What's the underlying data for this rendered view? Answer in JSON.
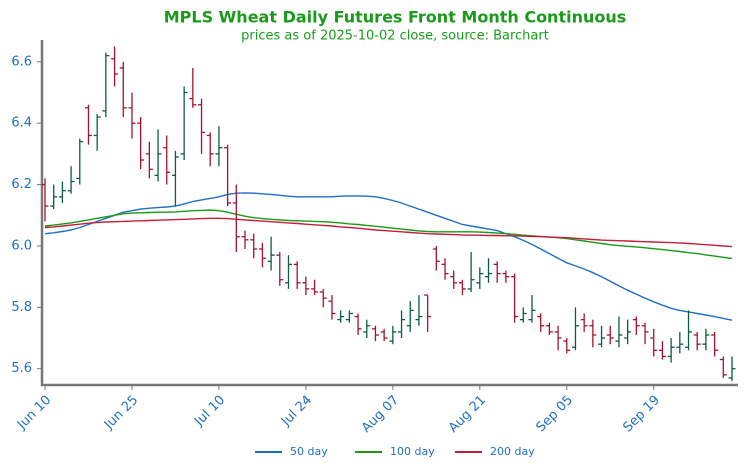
{
  "chart_data": {
    "type": "ohlc",
    "title": "MPLS Wheat Daily Futures Front Month Continuous",
    "subtitle": "prices as of 2025-10-02 close, source: Barchart",
    "categories": [
      "Jun 10",
      null,
      null,
      null,
      null,
      null,
      null,
      null,
      null,
      null,
      "Jun 25",
      null,
      null,
      null,
      null,
      null,
      null,
      null,
      null,
      null,
      "Jul 10",
      null,
      null,
      null,
      null,
      null,
      null,
      null,
      null,
      null,
      "Jul 24",
      null,
      null,
      null,
      null,
      null,
      null,
      null,
      null,
      null,
      "Aug 07",
      null,
      null,
      null,
      null,
      null,
      null,
      null,
      null,
      null,
      "Aug 21",
      null,
      null,
      null,
      null,
      null,
      null,
      null,
      null,
      null,
      "Sep 05",
      null,
      null,
      null,
      null,
      null,
      null,
      null,
      null,
      null,
      "Sep 19",
      null,
      null,
      null,
      null,
      null,
      null,
      null,
      null,
      null
    ],
    "open": [
      6.2,
      6.13,
      6.16,
      6.18,
      6.22,
      6.45,
      6.36,
      6.44,
      6.61,
      6.58,
      6.45,
      6.4,
      6.3,
      6.23,
      6.32,
      6.23,
      6.3,
      6.48,
      6.46,
      6.36,
      6.3,
      6.32,
      6.14,
      6.03,
      6.02,
      5.99,
      5.95,
      5.97,
      5.88,
      5.94,
      5.88,
      5.86,
      5.85,
      5.82,
      5.76,
      5.76,
      5.77,
      5.72,
      5.73,
      5.72,
      5.69,
      5.72,
      5.74,
      5.76,
      5.84,
      5.99,
      5.94,
      5.9,
      5.88,
      5.86,
      5.88,
      5.9,
      5.94,
      5.91,
      5.9,
      5.76,
      5.76,
      5.77,
      5.74,
      5.72,
      5.69,
      5.67,
      5.76,
      5.74,
      5.68,
      5.71,
      5.69,
      5.7,
      5.76,
      5.74,
      5.7,
      5.66,
      5.64,
      5.67,
      5.67,
      5.71,
      5.68,
      5.71,
      5.63,
      5.57
    ],
    "high": [
      6.22,
      6.2,
      6.21,
      6.26,
      6.35,
      6.46,
      6.43,
      6.63,
      6.65,
      6.6,
      6.5,
      6.42,
      6.34,
      6.38,
      6.36,
      6.31,
      6.52,
      6.58,
      6.48,
      6.37,
      6.39,
      6.33,
      6.2,
      6.05,
      6.04,
      6.01,
      6.03,
      5.98,
      5.97,
      5.95,
      5.9,
      5.89,
      5.86,
      5.84,
      5.79,
      5.79,
      5.78,
      5.76,
      5.74,
      5.73,
      5.74,
      5.79,
      5.82,
      5.84,
      5.84,
      6.0,
      5.96,
      5.92,
      5.89,
      5.98,
      5.93,
      5.96,
      5.95,
      5.92,
      5.91,
      5.8,
      5.84,
      5.78,
      5.75,
      5.74,
      5.7,
      5.8,
      5.78,
      5.76,
      5.74,
      5.74,
      5.77,
      5.76,
      5.77,
      5.75,
      5.73,
      5.69,
      5.7,
      5.72,
      5.79,
      5.72,
      5.73,
      5.72,
      5.64,
      5.64
    ],
    "low": [
      6.08,
      6.12,
      6.14,
      6.17,
      6.2,
      6.33,
      6.31,
      6.42,
      6.52,
      6.42,
      6.35,
      6.25,
      6.22,
      6.21,
      6.2,
      6.13,
      6.28,
      6.45,
      6.3,
      6.26,
      6.26,
      6.13,
      5.98,
      5.99,
      5.96,
      5.93,
      5.92,
      5.87,
      5.86,
      5.86,
      5.84,
      5.84,
      5.8,
      5.76,
      5.75,
      5.75,
      5.71,
      5.7,
      5.69,
      5.69,
      5.68,
      5.7,
      5.72,
      5.74,
      5.72,
      5.92,
      5.89,
      5.86,
      5.84,
      5.85,
      5.86,
      5.88,
      5.88,
      5.88,
      5.75,
      5.75,
      5.75,
      5.72,
      5.71,
      5.66,
      5.65,
      5.66,
      5.72,
      5.67,
      5.67,
      5.68,
      5.67,
      5.68,
      5.71,
      5.68,
      5.64,
      5.63,
      5.62,
      5.65,
      5.66,
      5.66,
      5.66,
      5.64,
      5.57,
      5.56
    ],
    "close": [
      6.13,
      6.16,
      6.18,
      6.21,
      6.34,
      6.36,
      6.42,
      6.62,
      6.56,
      6.45,
      6.4,
      6.28,
      6.25,
      6.3,
      6.24,
      6.29,
      6.5,
      6.46,
      6.37,
      6.3,
      6.32,
      6.14,
      6.03,
      6.02,
      5.99,
      5.96,
      5.97,
      5.89,
      5.94,
      5.88,
      5.86,
      5.85,
      5.83,
      5.78,
      5.77,
      5.78,
      5.73,
      5.74,
      5.71,
      5.7,
      5.72,
      5.76,
      5.79,
      5.77,
      5.77,
      5.95,
      5.91,
      5.88,
      5.86,
      5.89,
      5.91,
      5.91,
      5.91,
      5.9,
      5.77,
      5.78,
      5.79,
      5.74,
      5.72,
      5.7,
      5.66,
      5.74,
      5.74,
      5.71,
      5.7,
      5.7,
      5.71,
      5.72,
      5.74,
      5.72,
      5.66,
      5.64,
      5.67,
      5.68,
      5.72,
      5.68,
      5.71,
      5.66,
      5.58,
      5.6
    ],
    "up_color": "#0b5d3b",
    "down_color": "#a3132f",
    "series": [
      {
        "name": "50 day",
        "color": "#1f6fc5",
        "values": [
          6.04,
          6.043,
          6.047,
          6.052,
          6.06,
          6.07,
          6.08,
          6.09,
          6.1,
          6.11,
          6.115,
          6.12,
          6.123,
          6.125,
          6.127,
          6.13,
          6.137,
          6.145,
          6.15,
          6.155,
          6.16,
          6.168,
          6.172,
          6.173,
          6.172,
          6.17,
          6.168,
          6.165,
          6.162,
          6.16,
          6.16,
          6.16,
          6.16,
          6.16,
          6.162,
          6.163,
          6.163,
          6.162,
          6.16,
          6.155,
          6.148,
          6.14,
          6.13,
          6.12,
          6.11,
          6.1,
          6.09,
          6.08,
          6.07,
          6.065,
          6.06,
          6.055,
          6.05,
          6.04,
          6.03,
          6.018,
          6.005,
          5.99,
          5.975,
          5.96,
          5.945,
          5.935,
          5.925,
          5.913,
          5.9,
          5.885,
          5.87,
          5.856,
          5.843,
          5.83,
          5.818,
          5.807,
          5.797,
          5.79,
          5.785,
          5.78,
          5.775,
          5.77,
          5.764,
          5.758
        ]
      },
      {
        "name": "100 day",
        "color": "#1a9a1a",
        "values": [
          6.065,
          6.068,
          6.072,
          6.075,
          6.08,
          6.085,
          6.09,
          6.095,
          6.1,
          6.105,
          6.107,
          6.108,
          6.109,
          6.11,
          6.11,
          6.111,
          6.113,
          6.115,
          6.116,
          6.117,
          6.115,
          6.11,
          6.103,
          6.097,
          6.092,
          6.089,
          6.087,
          6.085,
          6.083,
          6.082,
          6.081,
          6.08,
          6.079,
          6.077,
          6.075,
          6.072,
          6.07,
          6.067,
          6.064,
          6.061,
          6.058,
          6.055,
          6.052,
          6.049,
          6.047,
          6.046,
          6.046,
          6.046,
          6.046,
          6.046,
          6.045,
          6.044,
          6.042,
          6.04,
          6.038,
          6.035,
          6.033,
          6.031,
          6.029,
          6.027,
          6.024,
          6.02,
          6.016,
          6.012,
          6.008,
          6.004,
          6.001,
          5.999,
          5.997,
          5.994,
          5.991,
          5.988,
          5.985,
          5.982,
          5.978,
          5.975,
          5.971,
          5.967,
          5.963,
          5.959
        ]
      },
      {
        "name": "200 day",
        "color": "#c41e3a",
        "values": [
          6.06,
          6.062,
          6.065,
          6.068,
          6.071,
          6.074,
          6.076,
          6.078,
          6.079,
          6.08,
          6.081,
          6.082,
          6.083,
          6.084,
          6.085,
          6.086,
          6.087,
          6.088,
          6.089,
          6.09,
          6.09,
          6.089,
          6.087,
          6.085,
          6.083,
          6.081,
          6.079,
          6.077,
          6.075,
          6.073,
          6.071,
          6.069,
          6.067,
          6.065,
          6.062,
          6.06,
          6.058,
          6.055,
          6.052,
          6.05,
          6.048,
          6.046,
          6.044,
          6.042,
          6.04,
          6.039,
          6.038,
          6.037,
          6.036,
          6.035,
          6.035,
          6.034,
          6.034,
          6.033,
          6.033,
          6.032,
          6.031,
          6.03,
          6.029,
          6.028,
          6.027,
          6.025,
          6.023,
          6.021,
          6.019,
          6.018,
          6.017,
          6.016,
          6.015,
          6.014,
          6.013,
          6.012,
          6.011,
          6.01,
          6.008,
          6.006,
          6.004,
          6.002,
          6.0,
          5.998
        ]
      }
    ],
    "ylim": [
      5.547,
      6.671
    ],
    "yticks": [
      5.6,
      5.8,
      {
        "value": 6,
        "label": "6.0"
      },
      6.2,
      6.4,
      6.6
    ],
    "grid": false
  }
}
